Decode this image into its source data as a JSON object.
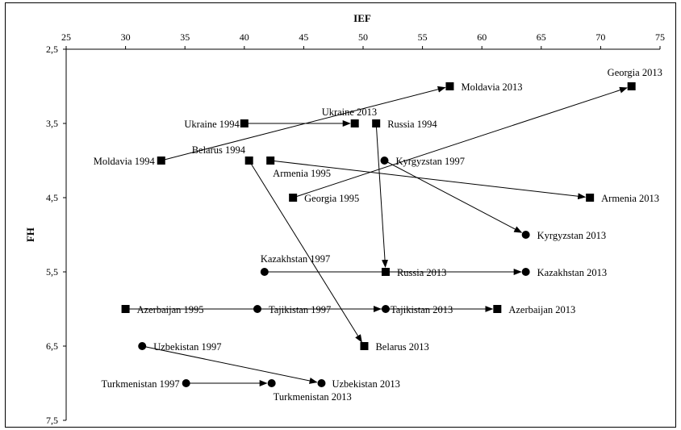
{
  "chart_data": {
    "type": "scatter",
    "title": "",
    "xlabel": "IEF",
    "ylabel": "FH",
    "xlim": [
      25,
      75
    ],
    "ylim": [
      2.5,
      7.5
    ],
    "x_axis_position": "top",
    "y_axis_inverted": true,
    "grid": false,
    "x_ticks": [
      "25",
      "30",
      "35",
      "40",
      "45",
      "50",
      "55",
      "60",
      "65",
      "70",
      "75"
    ],
    "y_ticks": [
      "2,5",
      "3,5",
      "4,5",
      "5,5",
      "6,5",
      "7,5"
    ],
    "points": [
      {
        "label": "Moldavia 1994",
        "x": 33.0,
        "y": 4.0,
        "marker": "square"
      },
      {
        "label": "Moldavia 2013",
        "x": 57.3,
        "y": 3.0,
        "marker": "square"
      },
      {
        "label": "Ukraine 1994",
        "x": 40.0,
        "y": 3.5,
        "marker": "square"
      },
      {
        "label": "Ukraine 2013",
        "x": 49.3,
        "y": 3.5,
        "marker": "square"
      },
      {
        "label": "Russia 1994",
        "x": 51.1,
        "y": 3.5,
        "marker": "square"
      },
      {
        "label": "Russia 2013",
        "x": 51.9,
        "y": 5.5,
        "marker": "square"
      },
      {
        "label": "Georgia 1995",
        "x": 44.1,
        "y": 4.5,
        "marker": "square"
      },
      {
        "label": "Georgia 2013",
        "x": 72.6,
        "y": 3.0,
        "marker": "square"
      },
      {
        "label": "Belarus 1994",
        "x": 40.4,
        "y": 4.0,
        "marker": "square"
      },
      {
        "label": "Belarus 2013",
        "x": 50.1,
        "y": 6.5,
        "marker": "square"
      },
      {
        "label": "Armenia 1995",
        "x": 42.2,
        "y": 4.0,
        "marker": "square"
      },
      {
        "label": "Armenia 2013",
        "x": 69.1,
        "y": 4.5,
        "marker": "square"
      },
      {
        "label": "Kyrgyzstan 1997",
        "x": 51.8,
        "y": 4.0,
        "marker": "circle"
      },
      {
        "label": "Kyrgyzstan 2013",
        "x": 63.7,
        "y": 5.0,
        "marker": "circle"
      },
      {
        "label": "Kazakhstan 1997",
        "x": 41.7,
        "y": 5.5,
        "marker": "circle"
      },
      {
        "label": "Kazakhstan 2013",
        "x": 63.7,
        "y": 5.5,
        "marker": "circle"
      },
      {
        "label": "Azerbaijan 1995",
        "x": 30.0,
        "y": 6.0,
        "marker": "square"
      },
      {
        "label": "Azerbaijan 2013",
        "x": 61.3,
        "y": 6.0,
        "marker": "square"
      },
      {
        "label": "Tajikistan 1997",
        "x": 41.1,
        "y": 6.0,
        "marker": "circle"
      },
      {
        "label": "Tajikistan 2013",
        "x": 51.9,
        "y": 6.0,
        "marker": "circle"
      },
      {
        "label": "Uzbekistan 1997",
        "x": 31.4,
        "y": 6.5,
        "marker": "circle"
      },
      {
        "label": "Uzbekistan 2013",
        "x": 46.5,
        "y": 7.0,
        "marker": "circle"
      },
      {
        "label": "Turkmenistan 1997",
        "x": 35.1,
        "y": 7.0,
        "marker": "circle"
      },
      {
        "label": "Turkmenistan 2013",
        "x": 42.3,
        "y": 7.0,
        "marker": "circle"
      }
    ],
    "arrows": [
      {
        "from": "Moldavia 1994",
        "to": "Moldavia 2013"
      },
      {
        "from": "Ukraine 1994",
        "to": "Ukraine 2013"
      },
      {
        "from": "Russia 1994",
        "to": "Russia 2013"
      },
      {
        "from": "Georgia 1995",
        "to": "Georgia 2013"
      },
      {
        "from": "Belarus 1994",
        "to": "Belarus 2013"
      },
      {
        "from": "Armenia 1995",
        "to": "Armenia 2013"
      },
      {
        "from": "Kyrgyzstan 1997",
        "to": "Kyrgyzstan 2013"
      },
      {
        "from": "Kazakhstan 1997",
        "to": "Kazakhstan 2013"
      },
      {
        "from": "Azerbaijan 1995",
        "to": "Azerbaijan 2013"
      },
      {
        "from": "Tajikistan 1997",
        "to": "Tajikistan 2013"
      },
      {
        "from": "Uzbekistan 1997",
        "to": "Uzbekistan 2013"
      },
      {
        "from": "Turkmenistan 1997",
        "to": "Turkmenistan 2013"
      }
    ]
  }
}
